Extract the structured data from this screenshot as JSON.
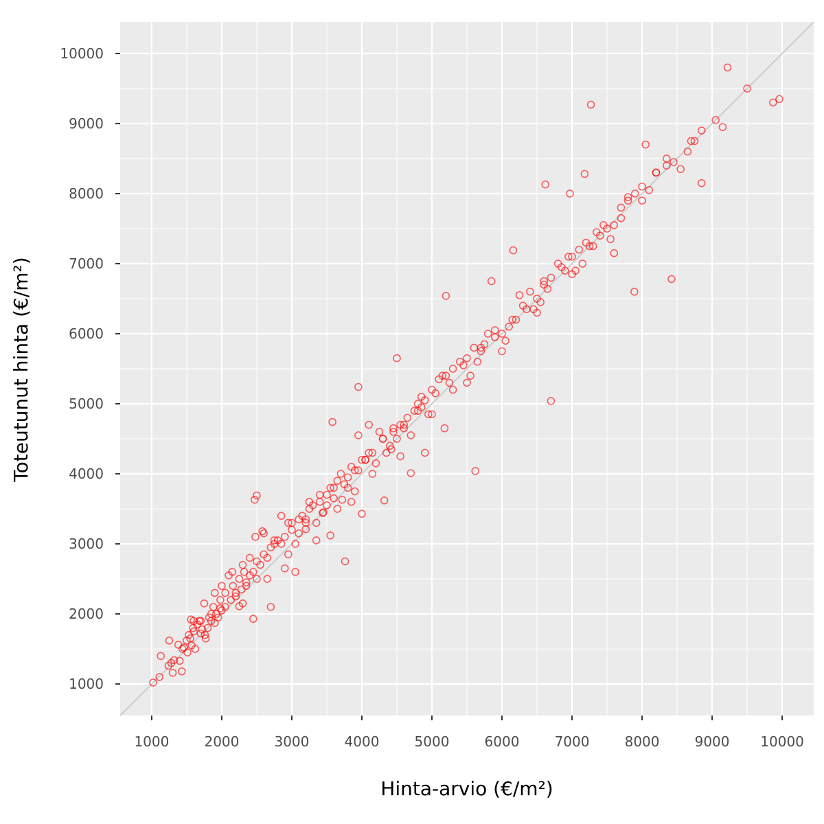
{
  "chart_data": {
    "type": "scatter",
    "title": "",
    "xlabel": "Hinta-arvio (€/m²)",
    "ylabel": "Toteutunut hinta (€/m²)",
    "xlim": [
      550,
      10450
    ],
    "ylim": [
      550,
      10450
    ],
    "xticks": [
      1000,
      2000,
      3000,
      4000,
      5000,
      6000,
      7000,
      8000,
      9000,
      10000
    ],
    "yticks": [
      1000,
      2000,
      3000,
      4000,
      5000,
      6000,
      7000,
      8000,
      9000,
      10000
    ],
    "grid": true,
    "reference_line": "y = x",
    "colors": {
      "panel": "#ebebeb",
      "grid": "#ffffff",
      "point": "#ff0000",
      "reference": "#cccccc"
    },
    "series": [
      {
        "x": [
          1020,
          1110,
          1130,
          1240,
          1250,
          1280,
          1300,
          1320,
          1380,
          1400,
          1430,
          1440,
          1460,
          1500,
          1510,
          1530,
          1560,
          1570,
          1590,
          1600,
          1620,
          1650,
          1680,
          1700,
          1720,
          1750,
          1770,
          1800,
          1820,
          1850,
          1880,
          1900,
          1920,
          1950,
          1980,
          2000,
          2050,
          2100,
          2130,
          2160,
          2200,
          2250,
          2280,
          2300,
          2320,
          2350,
          2400,
          2450,
          2480,
          2500,
          2550,
          2600,
          2650,
          2700,
          2750,
          2800,
          2850,
          2900,
          2950,
          3000,
          3050,
          3100,
          3150,
          3200,
          3250,
          3300,
          3350,
          3400,
          3450,
          3500,
          3550,
          3600,
          3650,
          3700,
          3750,
          3800,
          3850,
          3900,
          3950,
          4000,
          4050,
          4100,
          4150,
          4200,
          4250,
          4300,
          4350,
          4400,
          4450,
          4500,
          4550,
          4600,
          4650,
          4700,
          4750,
          4800,
          4850,
          4900,
          4950,
          5000,
          5100,
          5200,
          5300,
          5400,
          5500,
          5600,
          5700,
          5800,
          5900,
          6000,
          6100,
          6200,
          6300,
          6400,
          6500,
          6600,
          6700,
          6800,
          6900,
          7000,
          7100,
          7200,
          7300,
          7400,
          7500,
          7600,
          7700,
          7800,
          7900,
          8000,
          8100,
          8200,
          8350,
          8450,
          8650,
          8750,
          8850,
          9050,
          9220,
          9500,
          9870,
          9960,
          2470,
          2500,
          3950,
          3580,
          5620,
          6700,
          4700,
          3440,
          3720,
          3200,
          2450,
          2250,
          2580,
          3550,
          4900,
          5200,
          6650,
          6620,
          7270,
          7180,
          6970,
          5850,
          6160,
          5180,
          4500,
          4320,
          4000,
          3760,
          3050,
          2700,
          1900,
          1760,
          2350,
          2900,
          3650,
          4420,
          5500,
          6000,
          6450,
          7050,
          7600,
          8420,
          7890,
          8850,
          8350,
          2150,
          3000,
          3400,
          4150,
          4600,
          5300,
          5750,
          6250,
          6850,
          7350,
          7800,
          8050,
          1980,
          2600,
          3250,
          3800,
          4550,
          5050,
          5650,
          6350,
          6950,
          7450,
          8200,
          8700,
          2050,
          2400,
          2750,
          3100,
          3500,
          3900,
          4300,
          4800,
          5150,
          5450,
          5900,
          6550,
          7150,
          7700,
          1600,
          1850,
          2200,
          2500,
          2850,
          3200,
          3600,
          4050,
          4450,
          4850,
          5250,
          5700,
          6150,
          6600,
          7250,
          3950,
          4100,
          3850,
          3350,
          2950,
          2650,
          2300,
          2000,
          1700,
          1550,
          5000,
          5550,
          6050,
          6500,
          7000,
          7550,
          8000,
          8550,
          9150
        ],
        "y": [
          1020,
          1100,
          1400,
          1260,
          1620,
          1300,
          1160,
          1340,
          1560,
          1330,
          1180,
          1500,
          1520,
          1620,
          1450,
          1700,
          1920,
          1550,
          1800,
          1750,
          1500,
          1850,
          1900,
          1720,
          1780,
          2150,
          1650,
          1800,
          1950,
          1900,
          2100,
          2300,
          2000,
          1950,
          2200,
          2400,
          2100,
          2550,
          2200,
          2400,
          2300,
          2500,
          2350,
          2700,
          2600,
          2400,
          2800,
          2600,
          3100,
          2500,
          2700,
          3150,
          2800,
          2950,
          3000,
          3050,
          3400,
          3100,
          3300,
          3200,
          3000,
          3150,
          3400,
          3350,
          3500,
          3550,
          3300,
          3600,
          3450,
          3700,
          3800,
          3650,
          3900,
          4000,
          3850,
          3800,
          4100,
          3750,
          4050,
          4200,
          4200,
          4300,
          4000,
          4150,
          4600,
          4500,
          4300,
          4400,
          4600,
          4500,
          4250,
          4700,
          4800,
          4550,
          4900,
          5000,
          5100,
          5050,
          4850,
          5200,
          5350,
          5400,
          5500,
          5600,
          5650,
          5800,
          5750,
          6000,
          5950,
          6000,
          6100,
          6200,
          6400,
          6600,
          6500,
          6750,
          6800,
          7000,
          6900,
          7100,
          7200,
          7300,
          7250,
          7400,
          7500,
          7550,
          7800,
          7900,
          8000,
          8100,
          8050,
          8300,
          8400,
          8450,
          8600,
          8750,
          8900,
          9050,
          9800,
          9500,
          9300,
          9350,
          3630,
          3690,
          5240,
          4740,
          4040,
          5040,
          4010,
          3440,
          3630,
          3210,
          1930,
          2110,
          3180,
          3120,
          4300,
          6540,
          6640,
          8130,
          9270,
          8280,
          8000,
          6750,
          7190,
          4650,
          5650,
          3620,
          3430,
          2750,
          2600,
          2100,
          1870,
          1700,
          2450,
          2650,
          3500,
          4350,
          5300,
          5750,
          6350,
          6900,
          7150,
          6780,
          6600,
          8150,
          8500,
          2600,
          3300,
          3700,
          4300,
          4650,
          5200,
          5850,
          6550,
          6950,
          7450,
          7950,
          8700,
          2080,
          2850,
          3600,
          3950,
          4700,
          5150,
          5600,
          6350,
          7100,
          7550,
          8300,
          8750,
          2300,
          2550,
          3050,
          3350,
          3550,
          4050,
          4500,
          4900,
          5400,
          5550,
          6050,
          6450,
          7000,
          7650,
          1900,
          2000,
          2250,
          2750,
          3000,
          3300,
          3800,
          4200,
          4650,
          4950,
          5300,
          5800,
          6200,
          6700,
          7250,
          4550,
          4700,
          3600,
          3050,
          2850,
          2500,
          2150,
          2050,
          1900,
          1650,
          4850,
          5400,
          5900,
          6300,
          6850,
          7350,
          7900,
          8350,
          8950
        ]
      }
    ]
  }
}
